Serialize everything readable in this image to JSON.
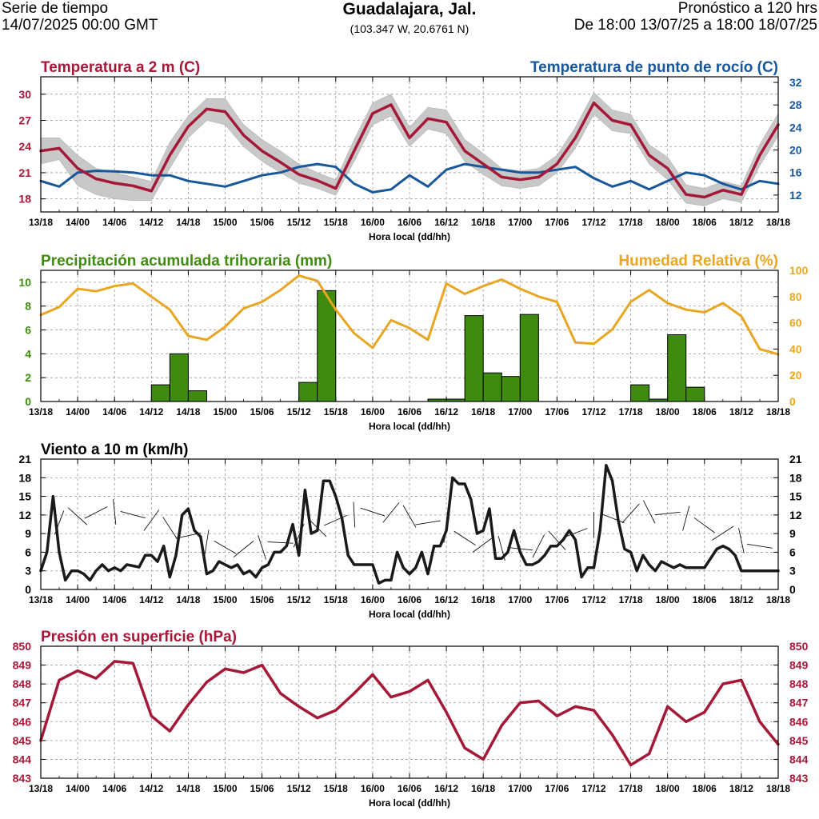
{
  "header": {
    "left_line1": "Serie de tiempo",
    "left_line2": "14/07/2025 00:00 GMT",
    "title": "Guadalajara, Jal.",
    "coords": "(103.347 W, 20.6761 N)",
    "right_line1": "Pronóstico a 120 hrs",
    "right_line2": "De 18:00 13/07/25 a 18:00 18/07/25"
  },
  "x_axis": {
    "label": "Hora local (dd/hh)",
    "tick_labels": [
      "13/18",
      "14/00",
      "14/06",
      "14/12",
      "14/18",
      "15/00",
      "15/06",
      "15/12",
      "15/18",
      "16/00",
      "16/06",
      "16/12",
      "16/18",
      "17/00",
      "17/06",
      "17/12",
      "17/18",
      "18/00",
      "18/06",
      "18/12",
      "18/18"
    ],
    "range_hours": [
      0,
      120
    ]
  },
  "chart_data": [
    {
      "type": "line",
      "panel": "temperature",
      "title_left": "Temperatura a 2 m (C)",
      "title_right": "Temperatura de punto de rocío (C)",
      "colors": {
        "temperature": "#a51837",
        "dewpoint": "#17579b",
        "band": "#c8c8c8"
      },
      "y_left": {
        "range": [
          16.5,
          32
        ],
        "ticks": [
          18,
          21,
          24,
          27,
          30
        ]
      },
      "y_right": {
        "range": [
          9,
          33
        ],
        "ticks": [
          12,
          16,
          20,
          24,
          28,
          32
        ]
      },
      "x_hours": [
        0,
        3,
        6,
        9,
        12,
        15,
        18,
        21,
        24,
        27,
        30,
        33,
        36,
        39,
        42,
        45,
        48,
        51,
        54,
        57,
        60,
        63,
        66,
        69,
        72,
        75,
        78,
        81,
        84,
        87,
        90,
        93,
        96,
        99,
        102,
        105,
        108,
        111,
        114,
        117,
        120
      ],
      "series": [
        {
          "name": "Temperatura a 2 m (C)",
          "axis": "left",
          "values": [
            23.5,
            23.8,
            21.5,
            20.3,
            19.8,
            19.5,
            18.9,
            23.0,
            26.3,
            28.3,
            28.0,
            25.3,
            23.5,
            22.2,
            20.8,
            20.1,
            19.2,
            23.5,
            27.8,
            28.8,
            25.0,
            27.2,
            26.8,
            23.5,
            22.0,
            20.5,
            20.2,
            20.5,
            22.0,
            25.0,
            29.0,
            27.0,
            26.5,
            23.0,
            21.5,
            18.5,
            18.2,
            19.0,
            18.5,
            23.0,
            26.5
          ],
          "band_lower": [
            22.0,
            22.5,
            19.5,
            18.5,
            18.0,
            17.8,
            17.8,
            21.5,
            25.0,
            27.0,
            26.5,
            24.0,
            22.3,
            21.0,
            19.8,
            19.2,
            18.4,
            22.3,
            26.5,
            27.5,
            24.0,
            26.0,
            25.5,
            22.3,
            20.8,
            19.5,
            19.2,
            19.5,
            21.0,
            23.8,
            27.7,
            25.8,
            25.5,
            22.0,
            20.2,
            17.5,
            17.2,
            18.0,
            17.6,
            21.8,
            25.2
          ],
          "band_upper": [
            25.0,
            25.0,
            23.0,
            21.5,
            21.0,
            20.5,
            20.0,
            24.5,
            27.5,
            29.5,
            29.5,
            26.5,
            24.8,
            23.5,
            22.0,
            21.0,
            20.2,
            24.8,
            29.0,
            30.0,
            26.2,
            28.5,
            28.2,
            24.8,
            23.2,
            21.5,
            21.2,
            21.5,
            23.0,
            26.2,
            30.2,
            28.2,
            27.7,
            24.2,
            22.8,
            19.6,
            19.2,
            20.0,
            19.5,
            24.2,
            27.8
          ]
        },
        {
          "name": "Temperatura de punto de rocío (C)",
          "axis": "right",
          "values": [
            14.5,
            13.5,
            16.0,
            16.3,
            16.2,
            16.0,
            15.5,
            15.5,
            14.5,
            14.0,
            13.5,
            14.5,
            15.5,
            16.0,
            17.0,
            17.5,
            17.0,
            14.0,
            12.5,
            13.0,
            15.5,
            13.5,
            16.5,
            17.5,
            17.0,
            16.5,
            16.0,
            16.0,
            16.5,
            17.0,
            15.0,
            13.5,
            14.5,
            13.0,
            14.5,
            16.0,
            15.5,
            14.0,
            13.0,
            14.5,
            14.0
          ]
        }
      ]
    },
    {
      "type": "bar",
      "panel": "precipitation",
      "title_left": "Precipitación acumulada trihoraria (mm)",
      "title_right": "Humedad Relativa (%)",
      "colors": {
        "precipitation": "#3f8b0f",
        "humidity": "#e8a623"
      },
      "y_left": {
        "range": [
          0,
          11
        ],
        "ticks": [
          0,
          2,
          4,
          6,
          8,
          10
        ]
      },
      "y_right": {
        "range": [
          0,
          100
        ],
        "ticks": [
          0,
          20,
          40,
          60,
          80,
          100
        ]
      },
      "bars": [
        {
          "start_hour": 18,
          "end_hour": 21,
          "value": 1.4
        },
        {
          "start_hour": 21,
          "end_hour": 24,
          "value": 4.0
        },
        {
          "start_hour": 24,
          "end_hour": 27,
          "value": 0.9
        },
        {
          "start_hour": 42,
          "end_hour": 45,
          "value": 1.6
        },
        {
          "start_hour": 45,
          "end_hour": 48,
          "value": 9.3
        },
        {
          "start_hour": 63,
          "end_hour": 66,
          "value": 0.2
        },
        {
          "start_hour": 66,
          "end_hour": 69,
          "value": 0.2
        },
        {
          "start_hour": 69,
          "end_hour": 72,
          "value": 7.2
        },
        {
          "start_hour": 72,
          "end_hour": 75,
          "value": 2.4
        },
        {
          "start_hour": 75,
          "end_hour": 78,
          "value": 2.1
        },
        {
          "start_hour": 78,
          "end_hour": 81,
          "value": 7.3
        },
        {
          "start_hour": 96,
          "end_hour": 99,
          "value": 1.4
        },
        {
          "start_hour": 99,
          "end_hour": 102,
          "value": 0.2
        },
        {
          "start_hour": 102,
          "end_hour": 105,
          "value": 5.6
        },
        {
          "start_hour": 105,
          "end_hour": 108,
          "value": 1.2
        }
      ],
      "humidity_x_hours": [
        0,
        3,
        6,
        9,
        12,
        15,
        18,
        21,
        24,
        27,
        30,
        33,
        36,
        39,
        42,
        45,
        48,
        51,
        54,
        57,
        60,
        63,
        66,
        69,
        72,
        75,
        78,
        81,
        84,
        87,
        90,
        93,
        96,
        99,
        102,
        105,
        108,
        111,
        114,
        117,
        120
      ],
      "humidity_values": [
        66,
        72,
        86,
        84,
        88,
        90,
        80,
        70,
        50,
        47,
        57,
        71,
        76,
        85,
        96,
        92,
        70,
        52,
        41,
        62,
        56,
        47,
        90,
        82,
        88,
        93,
        86,
        80,
        76,
        45,
        44,
        55,
        76,
        85,
        75,
        70,
        68,
        75,
        65,
        40,
        36
      ]
    },
    {
      "type": "line",
      "panel": "wind",
      "title_left": "Viento a 10 m (km/h)",
      "colors": {
        "speed": "#1a1a1a"
      },
      "y_left": {
        "range": [
          0,
          21
        ],
        "ticks": [
          0,
          3,
          6,
          9,
          12,
          15,
          18,
          21
        ]
      },
      "y_right": {
        "range": [
          0,
          21
        ],
        "ticks": [
          0,
          3,
          6,
          9,
          12,
          15,
          18,
          21
        ]
      },
      "x_hours": [
        0,
        1,
        2,
        3,
        4,
        5,
        6,
        7,
        8,
        9,
        10,
        11,
        12,
        13,
        14,
        15,
        16,
        17,
        18,
        19,
        20,
        21,
        22,
        23,
        24,
        25,
        26,
        27,
        28,
        29,
        30,
        31,
        32,
        33,
        34,
        35,
        36,
        37,
        38,
        39,
        40,
        41,
        42,
        43,
        44,
        45,
        46,
        47,
        48,
        49,
        50,
        51,
        52,
        53,
        54,
        55,
        56,
        57,
        58,
        59,
        60,
        61,
        62,
        63,
        64,
        65,
        66,
        67,
        68,
        69,
        70,
        71,
        72,
        73,
        74,
        75,
        76,
        77,
        78,
        79,
        80,
        81,
        82,
        83,
        84,
        85,
        86,
        87,
        88,
        89,
        90,
        91,
        92,
        93,
        94,
        95,
        96,
        97,
        98,
        99,
        100,
        101,
        102,
        103,
        104,
        105,
        106,
        107,
        108,
        109,
        110,
        111,
        112,
        113,
        114,
        115,
        116,
        117,
        118,
        119,
        120
      ],
      "values": [
        3.0,
        6.0,
        15.0,
        6.0,
        1.5,
        3.0,
        3.0,
        2.5,
        1.5,
        3.0,
        4.0,
        3.0,
        3.5,
        3.0,
        4.0,
        3.8,
        3.6,
        5.5,
        5.5,
        4.5,
        7.0,
        2.0,
        5.5,
        12.0,
        13.0,
        9.5,
        8.5,
        2.5,
        3.0,
        4.5,
        4.0,
        3.5,
        4.0,
        2.5,
        3.0,
        2.0,
        3.5,
        4.0,
        6.0,
        6.0,
        7.0,
        10.5,
        5.5,
        16.0,
        9.0,
        9.5,
        17.5,
        17.5,
        15.0,
        11.5,
        5.5,
        4.0,
        4.0,
        4.0,
        4.0,
        1.0,
        1.5,
        1.5,
        6.0,
        3.5,
        2.5,
        3.5,
        6.0,
        2.5,
        7.0,
        7.0,
        9.5,
        18.0,
        17.0,
        17.0,
        14.5,
        9.0,
        9.5,
        13.0,
        5.0,
        5.0,
        6.0,
        9.5,
        6.0,
        4.0,
        4.0,
        4.5,
        5.5,
        7.0,
        7.0,
        8.0,
        9.5,
        8.0,
        2.0,
        3.5,
        3.5,
        9.5,
        20.0,
        17.5,
        11.0,
        6.5,
        6.0,
        3.0,
        5.5,
        4.0,
        3.0,
        4.5,
        4.0,
        3.5,
        4.0,
        3.5,
        3.5,
        3.5,
        3.5,
        5.0,
        6.5,
        7.0,
        6.5,
        5.5,
        3.0,
        3.0,
        3.0,
        3.0,
        3.0,
        3.0,
        3.0
      ]
    },
    {
      "type": "line",
      "panel": "pressure",
      "title_left": "Presión en superficie (hPa)",
      "colors": {
        "pressure": "#a51837"
      },
      "y_left": {
        "range": [
          843,
          850
        ],
        "ticks": [
          843,
          844,
          845,
          846,
          847,
          848,
          849,
          850
        ]
      },
      "y_right": {
        "range": [
          843,
          850
        ],
        "ticks": [
          843,
          844,
          845,
          846,
          847,
          848,
          849,
          850
        ]
      },
      "x_hours": [
        0,
        3,
        6,
        9,
        12,
        15,
        18,
        21,
        24,
        27,
        30,
        33,
        36,
        39,
        42,
        45,
        48,
        51,
        54,
        57,
        60,
        63,
        66,
        69,
        72,
        75,
        78,
        81,
        84,
        87,
        90,
        93,
        96,
        99,
        102,
        105,
        108,
        111,
        114,
        117,
        120
      ],
      "values": [
        845.0,
        848.2,
        848.7,
        848.3,
        849.2,
        849.1,
        846.3,
        845.5,
        846.9,
        848.1,
        848.8,
        848.6,
        849.0,
        847.5,
        846.8,
        846.2,
        846.6,
        847.5,
        848.5,
        847.3,
        847.6,
        848.2,
        846.5,
        844.6,
        844.0,
        845.8,
        847.0,
        847.1,
        846.3,
        846.8,
        846.6,
        845.3,
        843.7,
        844.3,
        846.8,
        846.0,
        846.5,
        848.0,
        848.2,
        846.0,
        844.8
      ]
    }
  ]
}
